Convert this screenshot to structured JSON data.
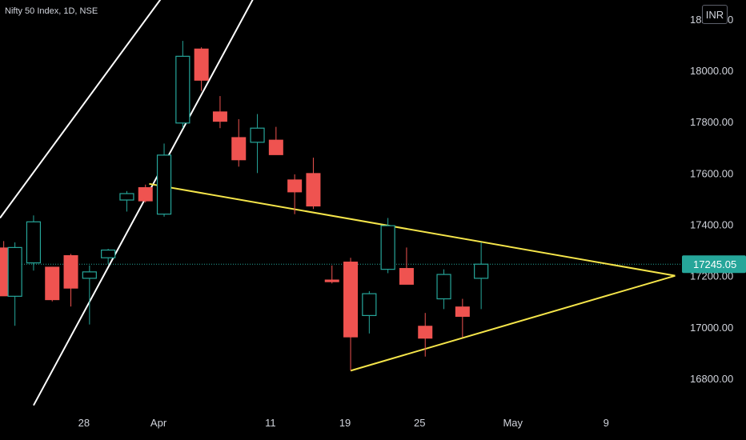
{
  "header": {
    "symbol_label": "Nifty 50 Index, 1D, NSE",
    "currency_button": "INR"
  },
  "colors": {
    "up": "#26a69a",
    "down": "#ef5350",
    "trendline": "#ffffff",
    "triangle": "#f5e54a",
    "price_line": "#26a69a",
    "axis_text": "#d1d4dc",
    "background": "#000000"
  },
  "chart_data": {
    "type": "candlestick",
    "y_axis": {
      "ticks": [
        16800,
        17000,
        17200,
        17400,
        17600,
        17800,
        18000,
        18200
      ],
      "tick_labels": [
        "16800.00",
        "17000.00",
        "17200.00",
        "17400.00",
        "17600.00",
        "17800.00",
        "18000.00",
        "18200.00"
      ],
      "range": [
        16700,
        18320
      ]
    },
    "x_axis": {
      "ticks": [
        {
          "label": "28",
          "index": 4
        },
        {
          "label": "Apr",
          "index": 8
        },
        {
          "label": "11",
          "index": 14
        },
        {
          "label": "19",
          "index": 18
        },
        {
          "label": "25",
          "index": 22
        },
        {
          "label": "May",
          "index": 27
        },
        {
          "label": "9",
          "index": 32
        }
      ]
    },
    "last_price": {
      "value": 17245.05,
      "label": "17245.05"
    },
    "candles": [
      {
        "i": -0.3,
        "o": 17310,
        "h": 17335,
        "l": 17130,
        "c": 17120
      },
      {
        "i": 0.3,
        "o": 17120,
        "h": 17330,
        "l": 17005,
        "c": 17310
      },
      {
        "i": 1.3,
        "o": 17250,
        "h": 17435,
        "l": 17220,
        "c": 17410
      },
      {
        "i": 2.3,
        "o": 17235,
        "h": 17235,
        "l": 17100,
        "c": 17105
      },
      {
        "i": 3.3,
        "o": 17280,
        "h": 17285,
        "l": 17080,
        "c": 17150
      },
      {
        "i": 4.3,
        "o": 17190,
        "h": 17240,
        "l": 17010,
        "c": 17215
      },
      {
        "i": 5.3,
        "o": 17270,
        "h": 17305,
        "l": 17245,
        "c": 17300
      },
      {
        "i": 6.3,
        "o": 17495,
        "h": 17530,
        "l": 17450,
        "c": 17520
      },
      {
        "i": 7.3,
        "o": 17545,
        "h": 17555,
        "l": 17485,
        "c": 17490
      },
      {
        "i": 8.3,
        "o": 17440,
        "h": 17715,
        "l": 17430,
        "c": 17670
      },
      {
        "i": 9.3,
        "o": 17795,
        "h": 18115,
        "l": 17775,
        "c": 18055
      },
      {
        "i": 10.3,
        "o": 18085,
        "h": 18090,
        "l": 17920,
        "c": 17960
      },
      {
        "i": 11.3,
        "o": 17840,
        "h": 17900,
        "l": 17775,
        "c": 17800
      },
      {
        "i": 12.3,
        "o": 17740,
        "h": 17810,
        "l": 17625,
        "c": 17650
      },
      {
        "i": 13.3,
        "o": 17720,
        "h": 17830,
        "l": 17600,
        "c": 17775
      },
      {
        "i": 14.3,
        "o": 17730,
        "h": 17780,
        "l": 17680,
        "c": 17670
      },
      {
        "i": 15.3,
        "o": 17575,
        "h": 17595,
        "l": 17440,
        "c": 17525
      },
      {
        "i": 16.3,
        "o": 17600,
        "h": 17660,
        "l": 17460,
        "c": 17470
      },
      {
        "i": 17.3,
        "o": 17185,
        "h": 17240,
        "l": 17170,
        "c": 17175
      },
      {
        "i": 18.3,
        "o": 17255,
        "h": 17270,
        "l": 16830,
        "c": 16960
      },
      {
        "i": 19.3,
        "o": 17045,
        "h": 17140,
        "l": 16975,
        "c": 17130
      },
      {
        "i": 20.3,
        "o": 17225,
        "h": 17425,
        "l": 17210,
        "c": 17395
      },
      {
        "i": 21.3,
        "o": 17230,
        "h": 17310,
        "l": 17170,
        "c": 17165
      },
      {
        "i": 22.3,
        "o": 17005,
        "h": 17055,
        "l": 16885,
        "c": 16955
      },
      {
        "i": 23.3,
        "o": 17110,
        "h": 17225,
        "l": 17070,
        "c": 17205
      },
      {
        "i": 24.3,
        "o": 17080,
        "h": 17110,
        "l": 16960,
        "c": 17040
      },
      {
        "i": 25.3,
        "o": 17190,
        "h": 17330,
        "l": 17070,
        "c": 17245
      }
    ],
    "trendlines": [
      {
        "role": "channel-upper",
        "from": {
          "i": -0.5,
          "p": 17425
        },
        "to": {
          "i": 13.6,
          "p": 18820
        }
      },
      {
        "role": "channel-lower",
        "from": {
          "i": 1.3,
          "p": 16695
        },
        "to": {
          "i": 16.8,
          "p": 18780
        }
      },
      {
        "role": "triangle-upper",
        "from": {
          "i": 7.5,
          "p": 17558
        },
        "to": {
          "i": 35.7,
          "p": 17200
        }
      },
      {
        "role": "triangle-lower",
        "from": {
          "i": 18.3,
          "p": 16830
        },
        "to": {
          "i": 35.7,
          "p": 17200
        }
      }
    ]
  }
}
